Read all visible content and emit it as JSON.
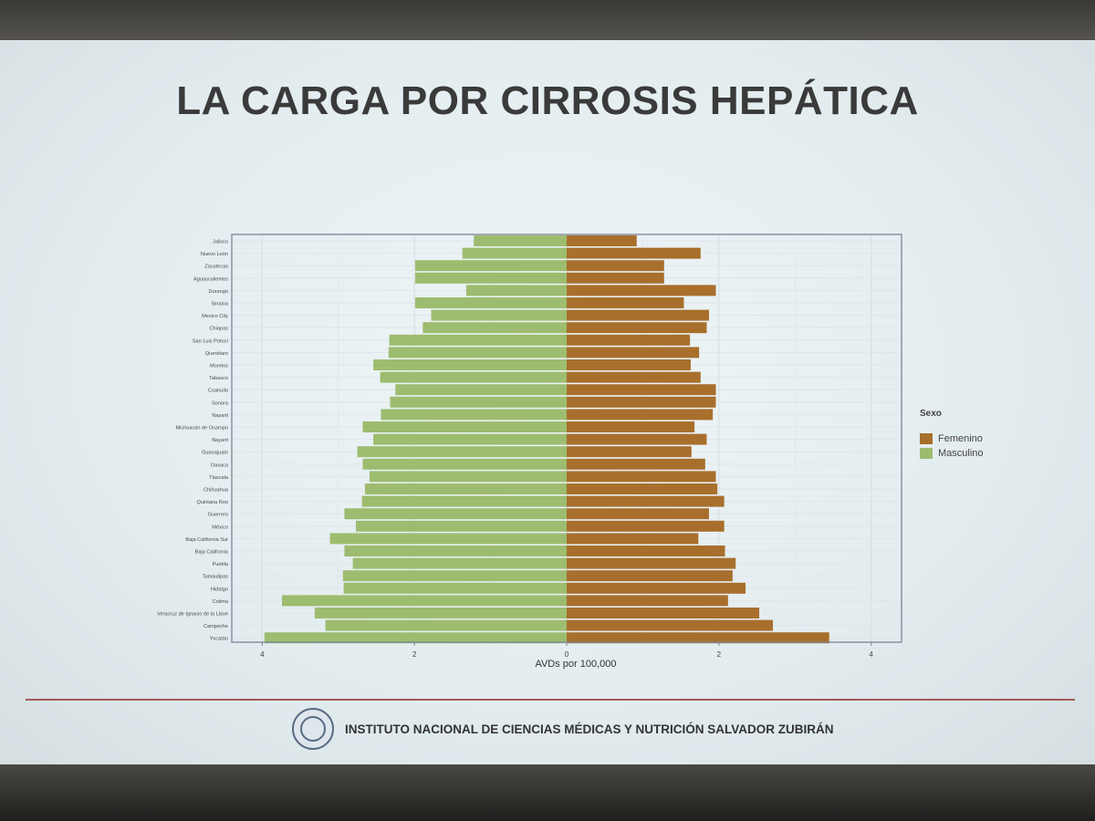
{
  "slide": {
    "title": "LA CARGA POR CIRROSIS HEPÁTICA",
    "footer_text": "INSTITUTO NACIONAL DE CIENCIAS MÉDICAS Y NUTRICIÓN SALVADOR ZUBIRÁN"
  },
  "chart_data": {
    "type": "bar",
    "orientation": "horizontal-diverging",
    "xlabel": "AVDs por 100,000",
    "xlim": [
      -4.4,
      4.4
    ],
    "x_ticks": [
      -4,
      -2,
      0,
      2,
      4
    ],
    "x_tick_labels": [
      "4",
      "2",
      "0",
      "2",
      "4"
    ],
    "grid": true,
    "legend": {
      "title": "Sexo",
      "placement": "right"
    },
    "colors": {
      "Femenino": "#a86f2c",
      "Masculino": "#9ebc6f"
    },
    "categories": [
      "Jalisco",
      "Nuevo León",
      "Zacatecas",
      "Aguascalientes",
      "Durango",
      "Sinaloa",
      "Mexico City",
      "Chiapas",
      "San Luis Potosí",
      "Querétaro",
      "Morelos",
      "Tabasco",
      "Coahuila",
      "Sonora",
      "Nayarit",
      "Michoacán de Ocampo",
      "Nayarit",
      "Guanajuato",
      "Oaxaca",
      "Tlaxcala",
      "Chihuahua",
      "Quintana Roo",
      "Guerrero",
      "México",
      "Baja California Sur",
      "Baja California",
      "Puebla",
      "Tamaulipas",
      "Hidalgo",
      "Colima",
      "Veracruz de Ignacio de la Llave",
      "Campeche",
      "Yucatán"
    ],
    "series": [
      {
        "name": "Femenino",
        "values": [
          0.92,
          1.76,
          1.28,
          1.28,
          1.96,
          1.54,
          1.87,
          1.84,
          1.62,
          1.74,
          1.63,
          1.76,
          1.96,
          1.96,
          1.92,
          1.68,
          1.84,
          1.64,
          1.82,
          1.96,
          1.98,
          2.07,
          1.87,
          2.07,
          1.73,
          2.08,
          2.22,
          2.18,
          2.35,
          2.12,
          2.53,
          2.71,
          3.45
        ]
      },
      {
        "name": "Masculino",
        "values": [
          1.22,
          1.37,
          1.99,
          1.99,
          1.32,
          1.99,
          1.78,
          1.89,
          2.33,
          2.34,
          2.54,
          2.45,
          2.25,
          2.32,
          2.44,
          2.68,
          2.54,
          2.75,
          2.68,
          2.59,
          2.65,
          2.69,
          2.92,
          2.77,
          3.11,
          2.92,
          2.81,
          2.94,
          2.93,
          3.74,
          3.31,
          3.17,
          3.97
        ]
      }
    ]
  }
}
